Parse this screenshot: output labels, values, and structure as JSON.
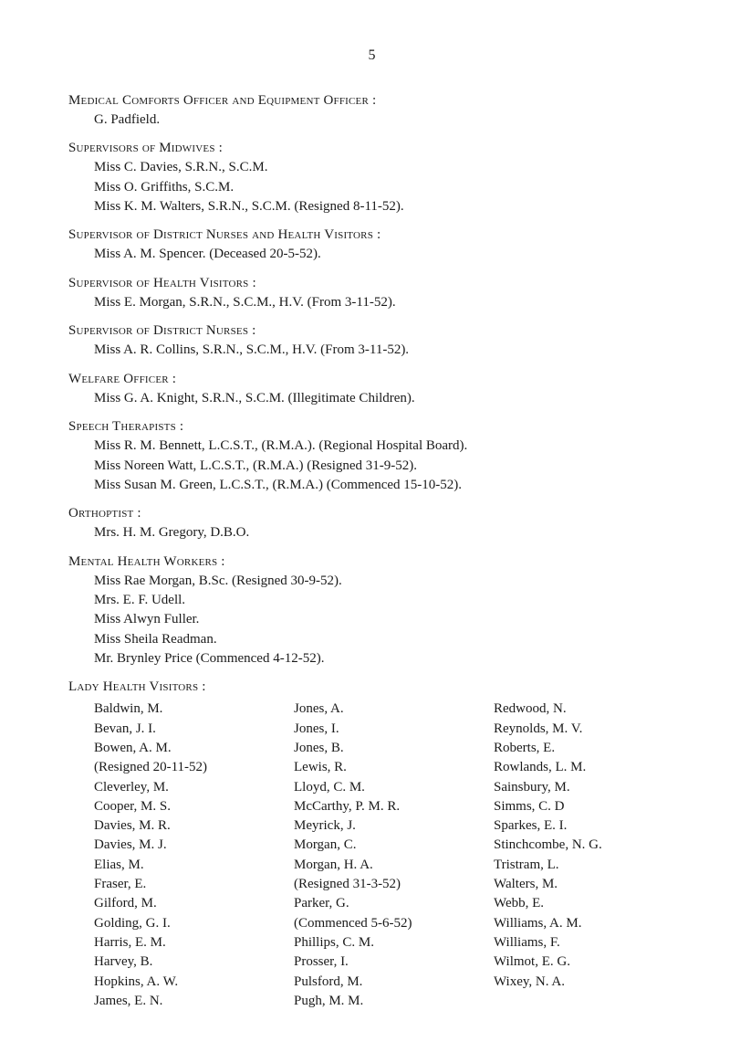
{
  "page_number": "5",
  "sections": {
    "medical": {
      "heading": "Medical Comforts Officer and Equipment Officer :",
      "entries": [
        "G. Padfield."
      ]
    },
    "midwives": {
      "heading": "Supervisors of Midwives :",
      "entries": [
        "Miss C. Davies, S.R.N., S.C.M.",
        "Miss O. Griffiths, S.C.M.",
        "Miss K. M. Walters, S.R.N., S.C.M. (Resigned 8-11-52)."
      ]
    },
    "district_health": {
      "heading": "Supervisor of District Nurses and Health Visitors :",
      "entries": [
        "Miss A. M. Spencer.  (Deceased 20-5-52)."
      ]
    },
    "health_visitors": {
      "heading": "Supervisor of Health Visitors :",
      "entries": [
        "Miss E. Morgan, S.R.N., S.C.M., H.V.   (From 3-11-52)."
      ]
    },
    "district_nurses": {
      "heading": "Supervisor of District Nurses :",
      "entries": [
        "Miss A. R. Collins, S.R.N., S.C.M., H.V.   (From 3-11-52)."
      ]
    },
    "welfare": {
      "heading": "Welfare Officer :",
      "entries": [
        "Miss G. A. Knight, S.R.N., S.C.M. (Illegitimate Children)."
      ]
    },
    "speech": {
      "heading": "Speech Therapists :",
      "entries": [
        "Miss R. M. Bennett, L.C.S.T., (R.M.A.). (Regional Hospital Board).",
        "Miss Noreen Watt, L.C.S.T., (R.M.A.) (Resigned 31-9-52).",
        "Miss Susan M. Green, L.C.S.T., (R.M.A.) (Commenced 15-10-52)."
      ]
    },
    "orthoptist": {
      "heading": "Orthoptist :",
      "entries": [
        "Mrs. H. M. Gregory, D.B.O."
      ]
    },
    "mental": {
      "heading": "Mental Health Workers :",
      "entries": [
        "Miss Rae Morgan, B.Sc. (Resigned 30-9-52).",
        "Mrs. E. F. Udell.",
        "Miss Alwyn Fuller.",
        "Miss Sheila Readman.",
        "Mr. Brynley Price (Commenced 4-12-52)."
      ]
    },
    "lady": {
      "heading": "Lady Health Visitors :",
      "columns": {
        "col1": [
          "Baldwin, M.",
          "Bevan, J. I.",
          "Bowen, A. M.",
          "  (Resigned 20-11-52)",
          "Cleverley, M.",
          "Cooper, M. S.",
          "Davies, M. R.",
          "Davies, M. J.",
          "Elias, M.",
          "Fraser, E.",
          "Gilford, M.",
          "Golding, G. I.",
          "Harris, E. M.",
          "Harvey, B.",
          "Hopkins, A. W.",
          "James, E. N."
        ],
        "col2": [
          "Jones, A.",
          "Jones, I.",
          "Jones, B.",
          "Lewis, R.",
          "Lloyd, C. M.",
          "McCarthy, P. M. R.",
          "Meyrick, J.",
          "Morgan, C.",
          "Morgan, H. A.",
          "  (Resigned 31-3-52)",
          "Parker, G.",
          "  (Commenced 5-6-52)",
          "Phillips, C. M.",
          "Prosser, I.",
          "Pulsford, M.",
          "Pugh, M. M."
        ],
        "col3": [
          "Redwood, N.",
          "Reynolds, M. V.",
          "Roberts, E.",
          "Rowlands, L. M.",
          "Sainsbury, M.",
          "Simms, C. D",
          "Sparkes, E. I.",
          "Stinchcombe, N. G.",
          "Tristram, L.",
          "Walters, M.",
          "Webb, E.",
          "Williams, A. M.",
          "Williams, F.",
          "Wilmot, E. G.",
          "Wixey, N. A."
        ]
      }
    }
  }
}
